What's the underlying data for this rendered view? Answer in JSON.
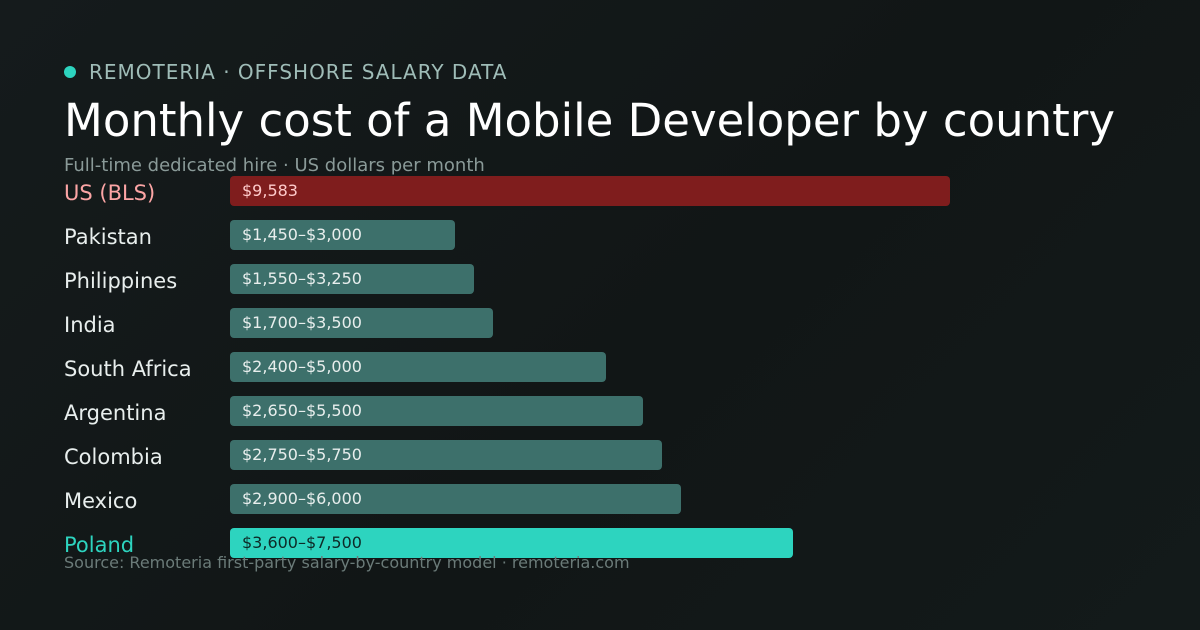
{
  "header": {
    "brand": "REMOTERIA · OFFSHORE SALARY DATA",
    "title": "Monthly cost of a Mobile Developer by country",
    "subtitle": "Full-time dedicated hire · US dollars per month"
  },
  "footer": {
    "source": "Source: Remoteria first-party salary-by-country model · remoteria.com"
  },
  "colors": {
    "background": "#131919",
    "accent": "#2dd4bf",
    "brand_text": "#9fbcb7",
    "title": "#ffffff",
    "subtitle": "#8a9a98",
    "label": "#e8eeed",
    "source": "#6b7b79",
    "bar_default": "#3d706b",
    "bar_us": "#7f1d1d",
    "label_us": "#fca5a5",
    "value_default": "#e8eeed",
    "value_us": "#fecaca",
    "value_highlight": "#0d2a27"
  },
  "chart_data": {
    "type": "bar",
    "orientation": "horizontal",
    "unit": "US dollars per month",
    "categories": [
      "US (BLS)",
      "Pakistan",
      "Philippines",
      "India",
      "South Africa",
      "Argentina",
      "Colombia",
      "Mexico",
      "Poland"
    ],
    "ranges": [
      [
        9583,
        9583
      ],
      [
        1450,
        3000
      ],
      [
        1550,
        3250
      ],
      [
        1700,
        3500
      ],
      [
        2400,
        5000
      ],
      [
        2650,
        5500
      ],
      [
        2750,
        5750
      ],
      [
        2900,
        6000
      ],
      [
        3600,
        7500
      ]
    ],
    "value_labels": [
      "$9,583",
      "$1,450–$3,000",
      "$1,550–$3,250",
      "$1,700–$3,500",
      "$2,400–$5,000",
      "$2,650–$5,500",
      "$2,750–$5,750",
      "$2,900–$6,000",
      "$3,600–$7,500"
    ],
    "bar_extent": "upper bound",
    "xlim": [
      0,
      9583
    ],
    "highlight": [
      "US (BLS)",
      "Poland"
    ],
    "grid": false,
    "legend": "none"
  }
}
